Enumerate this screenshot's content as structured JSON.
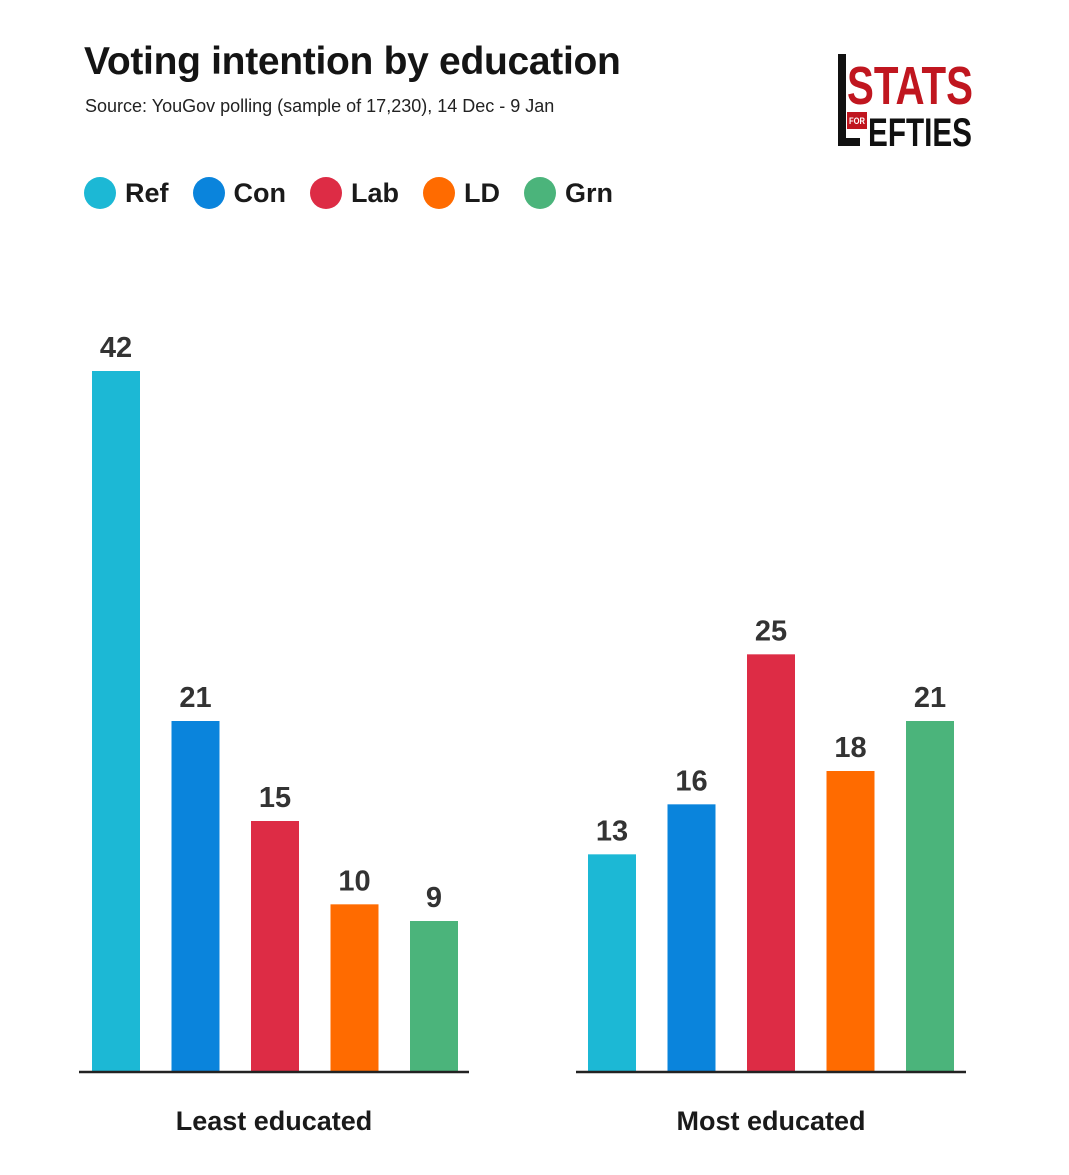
{
  "header": {
    "title": "Voting intention by education",
    "subtitle": "Source: YouGov polling (sample of 17,230), 14 Dec - 9 Jan"
  },
  "logo": {
    "top_text": "STATS",
    "for_text": "FOR",
    "bottom_text": "EFTIES",
    "brand_color": "#c0161f"
  },
  "chart_data": {
    "type": "bar",
    "title": "Voting intention by education",
    "categories": [
      "Least educated",
      "Most educated"
    ],
    "series": [
      {
        "name": "Ref",
        "color": "#1cb8d5",
        "values": [
          42,
          13
        ]
      },
      {
        "name": "Con",
        "color": "#0a84dc",
        "values": [
          21,
          16
        ]
      },
      {
        "name": "Lab",
        "color": "#dd2c45",
        "values": [
          15,
          25
        ]
      },
      {
        "name": "LD",
        "color": "#ff6b00",
        "values": [
          10,
          18
        ]
      },
      {
        "name": "Grn",
        "color": "#4bb47b",
        "values": [
          9,
          21
        ]
      }
    ],
    "legend_position": "top-left",
    "grid": false,
    "ylim": [
      0,
      42
    ]
  }
}
